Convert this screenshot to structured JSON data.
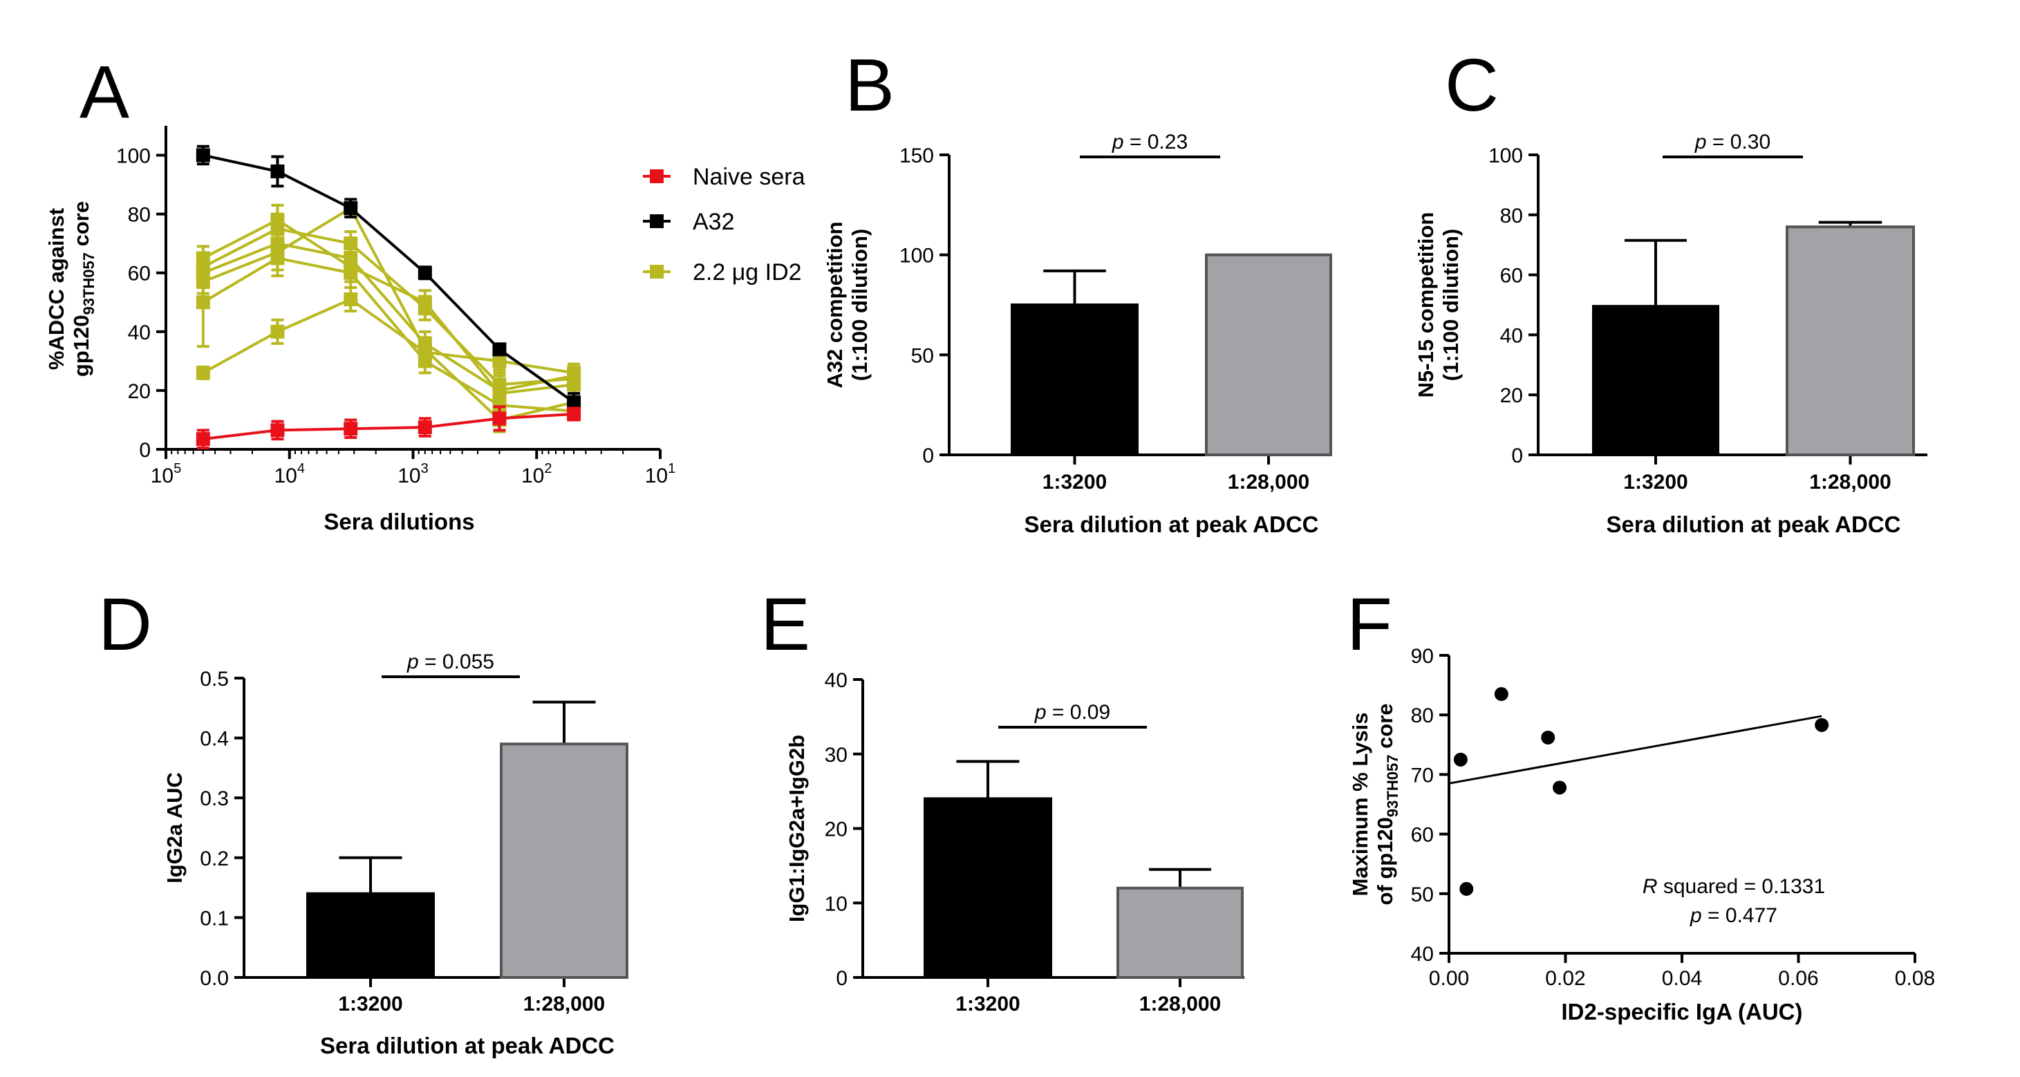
{
  "colors": {
    "naive": "#e8111a",
    "a32": "#000000",
    "id2": "#b8b820",
    "bar_black": "#000000",
    "bar_gray": "#a3a3a7"
  },
  "chart_data": [
    {
      "panel": "A",
      "type": "line",
      "title": "",
      "xlabel": "Sera dilutions",
      "ylabel_line1": "%ADCC against",
      "ylabel_line2": "gp120",
      "ylabel_sub": "93TH057",
      "ylabel_tail": " core",
      "xscale": "log-reversed",
      "xlim_exp": [
        5,
        1
      ],
      "x_tick_exps": [
        5,
        4,
        3,
        2,
        1
      ],
      "ylim": [
        0,
        110
      ],
      "y_ticks": [
        0,
        20,
        40,
        60,
        80,
        100
      ],
      "x": [
        50000,
        12500,
        3200,
        800,
        200,
        50
      ],
      "legend": [
        "Naive sera",
        "A32",
        "2.2 μg ID2"
      ],
      "series": [
        {
          "name": "Naive sera",
          "color_key": "naive",
          "values": [
            3.5,
            6.5,
            7,
            7.5,
            10.5,
            12
          ],
          "errors": [
            3,
            3,
            3,
            3,
            4,
            2
          ]
        },
        {
          "name": "A32",
          "color_key": "a32",
          "values": [
            100,
            94.5,
            82,
            60,
            34,
            16
          ],
          "errors": [
            3,
            5,
            3,
            2,
            1,
            3
          ]
        },
        {
          "name": "2.2 μg ID2 mouse 1",
          "color_key": "id2",
          "values": [
            65,
            78,
            62,
            50,
            19,
            22
          ],
          "errors": [
            4,
            5,
            5,
            4,
            8,
            3
          ]
        },
        {
          "name": "2.2 μg ID2 mouse 2",
          "color_key": "id2",
          "values": [
            62,
            75,
            70,
            48,
            22,
            24
          ],
          "errors": [
            4,
            5,
            4,
            4,
            6,
            3
          ]
        },
        {
          "name": "2.2 μg ID2 mouse 3",
          "color_key": "id2",
          "values": [
            60,
            70,
            65,
            36,
            20,
            25
          ],
          "errors": [
            5,
            5,
            5,
            4,
            6,
            3
          ]
        },
        {
          "name": "2.2 μg ID2 mouse 4",
          "color_key": "id2",
          "values": [
            57,
            67,
            82,
            34,
            10,
            16
          ],
          "errors": [
            4,
            6,
            3,
            4,
            4,
            3
          ]
        },
        {
          "name": "2.2 μg ID2 mouse 5",
          "color_key": "id2",
          "values": [
            50,
            65,
            60,
            30,
            15,
            13
          ],
          "errors": [
            15,
            6,
            5,
            4,
            4,
            3
          ]
        },
        {
          "name": "2.2 μg ID2 mouse 6",
          "color_key": "id2",
          "values": [
            26,
            40,
            51,
            33,
            30,
            26
          ],
          "errors": [
            2,
            4,
            4,
            4,
            5,
            3
          ]
        }
      ]
    },
    {
      "panel": "B",
      "type": "bar",
      "xlabel": "Sera dilution at peak ADCC",
      "ylabel_line1": "A32 competition",
      "ylabel_line2": "(1:100 dilution)",
      "categories": [
        "1:3200",
        "1:28,000"
      ],
      "values": [
        75,
        100
      ],
      "errors": [
        17,
        0
      ],
      "ylim": [
        0,
        150
      ],
      "y_ticks": [
        0,
        50,
        100,
        150
      ],
      "p_prefix": "p",
      "p_rest": " = 0.23"
    },
    {
      "panel": "C",
      "type": "bar",
      "xlabel": "Sera dilution at peak ADCC",
      "ylabel_line1": "N5-15 competition",
      "ylabel_line2": "(1:100 dilution)",
      "categories": [
        "1:3200",
        "1:28,000"
      ],
      "values": [
        49.5,
        76
      ],
      "errors": [
        22,
        1.5
      ],
      "ylim": [
        0,
        100
      ],
      "y_ticks": [
        0,
        20,
        40,
        60,
        80,
        100
      ],
      "p_prefix": "p",
      "p_rest": " = 0.30"
    },
    {
      "panel": "D",
      "type": "bar",
      "xlabel": "Sera dilution at peak ADCC",
      "ylabel_line1": "IgG2a AUC",
      "categories": [
        "1:3200",
        "1:28,000"
      ],
      "values": [
        0.14,
        0.39
      ],
      "errors": [
        0.06,
        0.07
      ],
      "ylim": [
        0,
        0.5
      ],
      "y_ticks": [
        0.0,
        0.1,
        0.2,
        0.3,
        0.4,
        0.5
      ],
      "y_tick_labels": [
        "0.0",
        "0.1",
        "0.2",
        "0.3",
        "0.4",
        "0.5"
      ],
      "p_prefix": "p",
      "p_rest": " = 0.055"
    },
    {
      "panel": "E",
      "type": "bar",
      "xlabel": "",
      "ylabel_line1": "IgG1:IgG2a+IgG2b",
      "categories": [
        "1:3200",
        "1:28,000"
      ],
      "values": [
        24,
        12
      ],
      "errors": [
        5,
        2.5
      ],
      "ylim": [
        0,
        40
      ],
      "y_ticks": [
        0,
        10,
        20,
        30,
        40
      ],
      "p_prefix": "p",
      "p_rest": " = 0.09"
    },
    {
      "panel": "F",
      "type": "scatter",
      "xlabel": "ID2-specific IgA (AUC)",
      "ylabel_line1": "Maximum % Lysis",
      "ylabel_line2": "of gp120",
      "ylabel_sub": "93TH057",
      "ylabel_tail": " core",
      "xlim": [
        0,
        0.08
      ],
      "x_ticks": [
        0.0,
        0.02,
        0.04,
        0.06,
        0.08
      ],
      "x_tick_labels": [
        "0.00",
        "0.02",
        "0.04",
        "0.06",
        "0.08"
      ],
      "ylim": [
        40,
        90
      ],
      "y_ticks": [
        40,
        50,
        60,
        70,
        80,
        90
      ],
      "points": [
        [
          0.002,
          72.5
        ],
        [
          0.003,
          50.8
        ],
        [
          0.009,
          83.5
        ],
        [
          0.017,
          76.2
        ],
        [
          0.019,
          67.8
        ],
        [
          0.064,
          78.3
        ]
      ],
      "fit": [
        [
          0.0,
          68.5
        ],
        [
          0.064,
          79.8
        ]
      ],
      "r_prefix": "R",
      "r_rest": " squared = 0.1331",
      "p_prefix": "p",
      "p_rest": " = 0.477"
    }
  ],
  "panel_labels": [
    "A",
    "B",
    "C",
    "D",
    "E",
    "F"
  ]
}
